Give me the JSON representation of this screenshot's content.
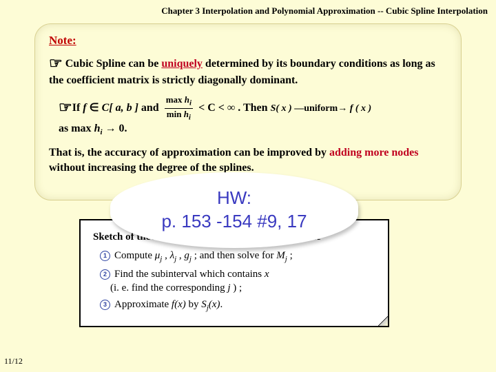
{
  "header": "Chapter 3 Interpolation and Polynomial Approximation -- Cubic Spline Interpolation",
  "note": "Note:",
  "para1_prefix": "Cubic Spline can be ",
  "uniquely": "uniquely",
  "para1_suffix": " determined by its boundary conditions as long as the coefficient matrix is strictly diagonally dominant.",
  "para2_if": "If ",
  "para2_f": "f",
  "para2_in": " ∈ ",
  "para2_cab": "C[ a, b ]",
  "para2_and": " and ",
  "frac_num_pre": "max ",
  "frac_num_h": "h",
  "frac_num_i": "i",
  "frac_den_pre": "min ",
  "para2_lt": " < C < ∞ .   Then ",
  "para2_rhs_sx": "S( x )",
  "para2_rhs_arrow": " —uniform→ ",
  "para2_rhs_fx": "f ( x )",
  "para2_tail_pre": "as max ",
  "para2_tail_h": "h",
  "para2_tail_i": "i",
  "para2_tail_suf": " → 0.",
  "para3_pre": "That is, the accuracy of approximation can be improved by ",
  "adding": "adding more nodes",
  "para3_suf": " without increasing the degree of the splines.",
  "sketch_title": "Sketch of the Algorithm: Compute the Cubic Spline",
  "step1_pre": "Compute ",
  "mu": "μ",
  "j": "j",
  "step1_mid": " , ",
  "lambda": "λ",
  "step1_gj": "g",
  "step1_solve": " ;  and then solve for ",
  "Mj": "M",
  "step1_end": " ;",
  "step2_a": "Find the subinterval which contains ",
  "step2_x": "x",
  "step2_b": "(i. e. find the corresponding ",
  "step2_j": " j ",
  "step2_c": ") ;",
  "step3_a": "Approximate ",
  "step3_fx": "f(x)",
  "step3_b": " by ",
  "step3_sj": "S",
  "step3_sjsub": "j",
  "step3_sjx": "(x)",
  "step3_end": ".",
  "hw_line1": "HW:",
  "hw_line2": "p. 153 -154 #9, 17",
  "pagenum": "11/12"
}
